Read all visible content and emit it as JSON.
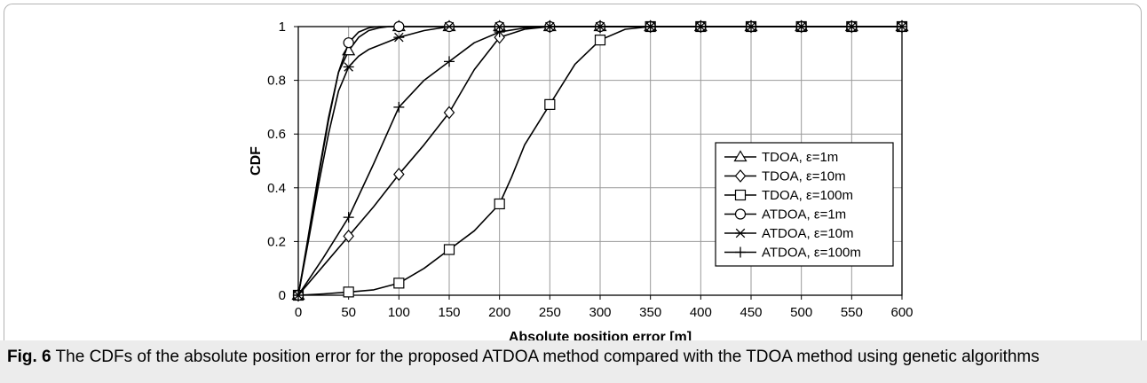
{
  "caption": {
    "label": "Fig. 6",
    "text": " The CDFs of the absolute position error for the proposed ATDOA method compared with the TDOA method using genetic algorithms"
  },
  "chart_data": {
    "type": "line",
    "xlabel": "Absolute position error [m]",
    "ylabel": "CDF",
    "xlim": [
      0,
      600
    ],
    "ylim": [
      0,
      1
    ],
    "xticks": [
      "0",
      "50",
      "100",
      "150",
      "200",
      "250",
      "300",
      "350",
      "400",
      "450",
      "500",
      "550",
      "600"
    ],
    "yticks": [
      "0",
      "0.2",
      "0.4",
      "0.6",
      "0.8",
      "1"
    ],
    "grid": true,
    "legend_position": "right",
    "series": [
      {
        "name": "TDOA, ε=1m",
        "marker": "triangle",
        "x": [
          0,
          10,
          20,
          30,
          40,
          50,
          60,
          70,
          80,
          90,
          100,
          150,
          200,
          250,
          300,
          350,
          400,
          450,
          500,
          550,
          600
        ],
        "y": [
          0,
          0.22,
          0.45,
          0.66,
          0.83,
          0.91,
          0.96,
          0.985,
          0.995,
          1,
          1,
          1,
          1,
          1,
          1,
          1,
          1,
          1,
          1,
          1,
          1
        ],
        "markers_x": [
          0,
          50,
          100,
          150,
          200,
          250,
          300,
          350,
          400,
          450,
          500,
          550,
          600
        ]
      },
      {
        "name": "TDOA, ε=10m",
        "marker": "diamond",
        "x": [
          0,
          25,
          50,
          75,
          100,
          125,
          150,
          175,
          200,
          225,
          250,
          300,
          350,
          400,
          450,
          500,
          550,
          600
        ],
        "y": [
          0,
          0.11,
          0.22,
          0.33,
          0.45,
          0.56,
          0.68,
          0.84,
          0.96,
          0.99,
          1,
          1,
          1,
          1,
          1,
          1,
          1,
          1
        ],
        "markers_x": [
          0,
          50,
          100,
          150,
          200,
          250,
          300,
          350,
          400,
          450,
          500,
          550,
          600
        ]
      },
      {
        "name": "TDOA, ε=100m",
        "marker": "square",
        "x": [
          0,
          25,
          50,
          75,
          100,
          125,
          150,
          175,
          200,
          212,
          225,
          250,
          275,
          300,
          325,
          350,
          375,
          400,
          450,
          500,
          550,
          600
        ],
        "y": [
          0,
          0.005,
          0.012,
          0.02,
          0.045,
          0.1,
          0.17,
          0.24,
          0.34,
          0.44,
          0.56,
          0.71,
          0.86,
          0.95,
          0.99,
          1,
          1,
          1,
          1,
          1,
          1,
          1
        ],
        "markers_x": [
          0,
          50,
          100,
          150,
          200,
          250,
          300,
          350,
          400,
          450,
          500,
          550,
          600
        ]
      },
      {
        "name": "ATDOA, ε=1m",
        "marker": "circle",
        "x": [
          0,
          10,
          20,
          30,
          40,
          50,
          60,
          70,
          80,
          90,
          100,
          150,
          200,
          250,
          300,
          350,
          400,
          450,
          500,
          550,
          600
        ],
        "y": [
          0,
          0.21,
          0.44,
          0.65,
          0.83,
          0.94,
          0.98,
          0.995,
          1,
          1,
          1,
          1,
          1,
          1,
          1,
          1,
          1,
          1,
          1,
          1,
          1
        ],
        "markers_x": [
          0,
          50,
          100,
          150,
          200,
          250,
          300,
          350,
          400,
          450,
          500,
          550,
          600
        ]
      },
      {
        "name": "ATDOA, ε=10m",
        "marker": "asterisk",
        "x": [
          0,
          10,
          20,
          30,
          40,
          50,
          60,
          70,
          80,
          90,
          100,
          125,
          150,
          200,
          250,
          300,
          350,
          400,
          450,
          500,
          550,
          600
        ],
        "y": [
          0,
          0.2,
          0.41,
          0.6,
          0.76,
          0.85,
          0.89,
          0.915,
          0.93,
          0.945,
          0.96,
          0.985,
          1,
          1,
          1,
          1,
          1,
          1,
          1,
          1,
          1,
          1
        ],
        "markers_x": [
          0,
          50,
          100,
          150,
          200,
          250,
          300,
          350,
          400,
          450,
          500,
          550,
          600
        ]
      },
      {
        "name": "ATDOA, ε=100m",
        "marker": "plus",
        "x": [
          0,
          25,
          50,
          75,
          100,
          125,
          150,
          175,
          200,
          225,
          250,
          300,
          350,
          400,
          450,
          500,
          550,
          600
        ],
        "y": [
          0,
          0.14,
          0.29,
          0.49,
          0.7,
          0.8,
          0.87,
          0.94,
          0.98,
          0.995,
          1,
          1,
          1,
          1,
          1,
          1,
          1,
          1
        ],
        "markers_x": [
          0,
          50,
          100,
          150,
          200,
          250,
          300,
          350,
          400,
          450,
          500,
          550,
          600
        ]
      }
    ]
  }
}
